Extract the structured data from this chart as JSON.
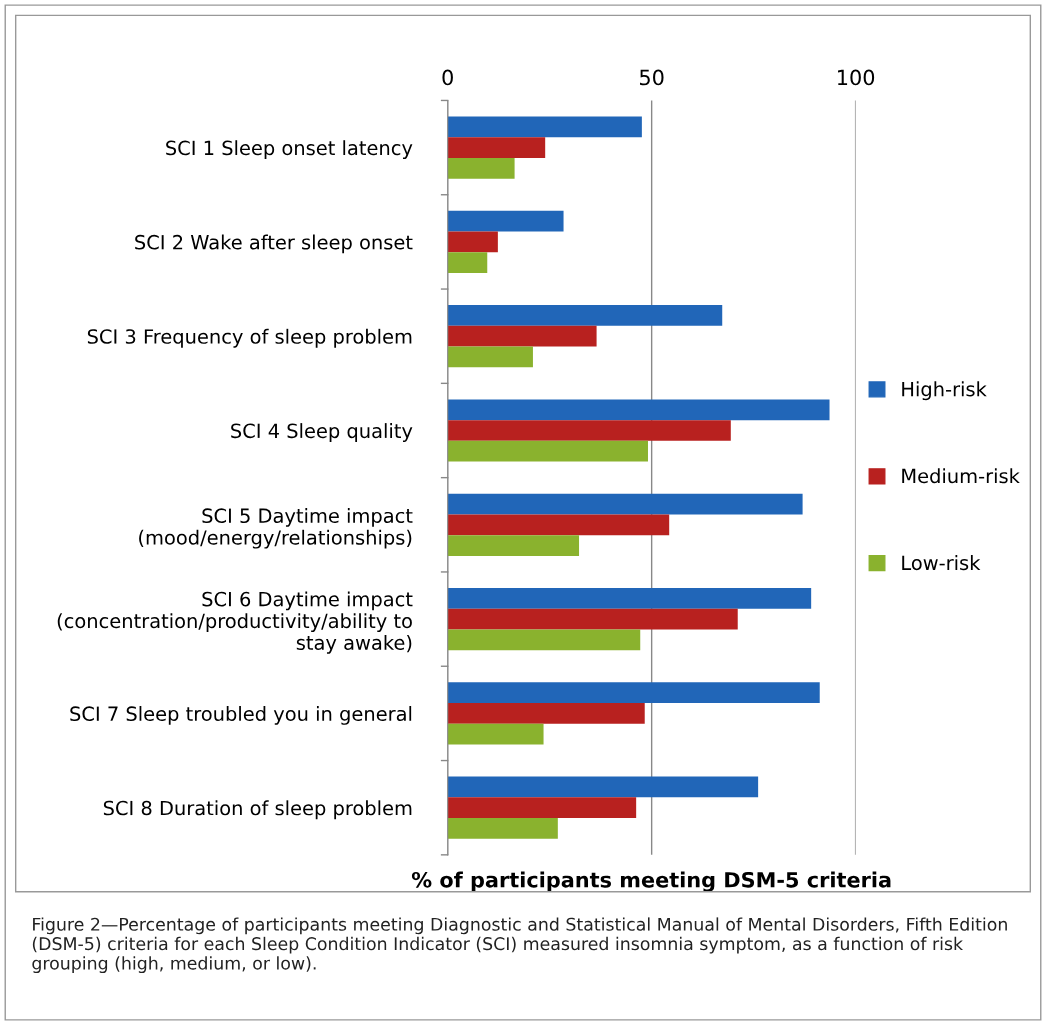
{
  "chart_data": {
    "type": "bar",
    "orientation": "horizontal",
    "categories": [
      "SCI 1 Sleep onset latency",
      "SCI 2 Wake after sleep onset",
      "SCI 3 Frequency of sleep problem",
      "SCI 4 Sleep quality",
      "SCI 5 Daytime impact\n(mood/energy/relationships)",
      "SCI 6 Daytime impact\n(concentration/productivity/ability to\nstay awake)",
      "SCI 7 Sleep troubled you in general",
      "SCI 8 Duration of sleep problem"
    ],
    "series": [
      {
        "name": "High-risk",
        "color": "#2166b8",
        "values": [
          47.6,
          28.4,
          67.3,
          93.6,
          87.0,
          89.1,
          91.2,
          76.1
        ]
      },
      {
        "name": "Medium-risk",
        "color": "#b8211f",
        "values": [
          23.9,
          12.3,
          36.5,
          69.4,
          54.3,
          71.1,
          48.3,
          46.2
        ]
      },
      {
        "name": "Low-risk",
        "color": "#8ab22e",
        "values": [
          16.4,
          9.7,
          20.9,
          49.1,
          32.2,
          47.2,
          23.5,
          27.0
        ]
      }
    ],
    "xlim": [
      0,
      100
    ],
    "xticks": [
      0,
      50,
      100
    ],
    "grid": "x",
    "legend": "right",
    "xlabel": "% of participants meeting DSM-5 criteria",
    "annotations": [
      "Figure 2—Percentage of participants meeting Diagnostic and Statistical Manual of Mental Disorders, Fifth Edition (DSM-5) criteria for each Sleep Condition Indicator (SCI) measured insomnia symptom, as a function of risk grouping (high, medium, or low)."
    ]
  }
}
